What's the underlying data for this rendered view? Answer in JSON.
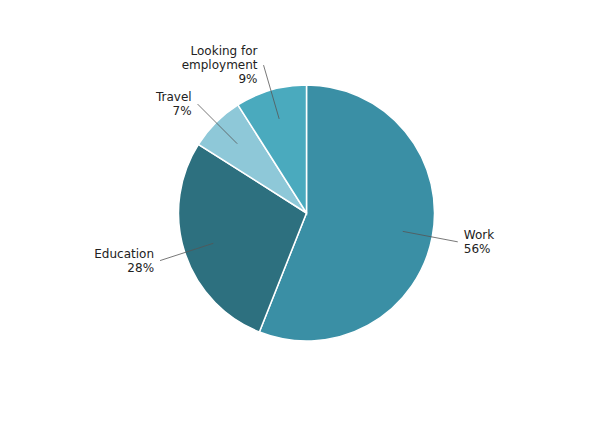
{
  "chart_data": {
    "type": "pie",
    "categories": [
      "Work",
      "Education",
      "Travel",
      "Looking for\nemployment"
    ],
    "values": [
      56,
      28,
      7,
      9
    ],
    "value_labels": [
      "56%",
      "28%",
      "7%",
      "9%"
    ],
    "colors": [
      "#3a8fa5",
      "#2d707f",
      "#8ec8d8",
      "#4aaabe"
    ],
    "data_labels": true
  }
}
